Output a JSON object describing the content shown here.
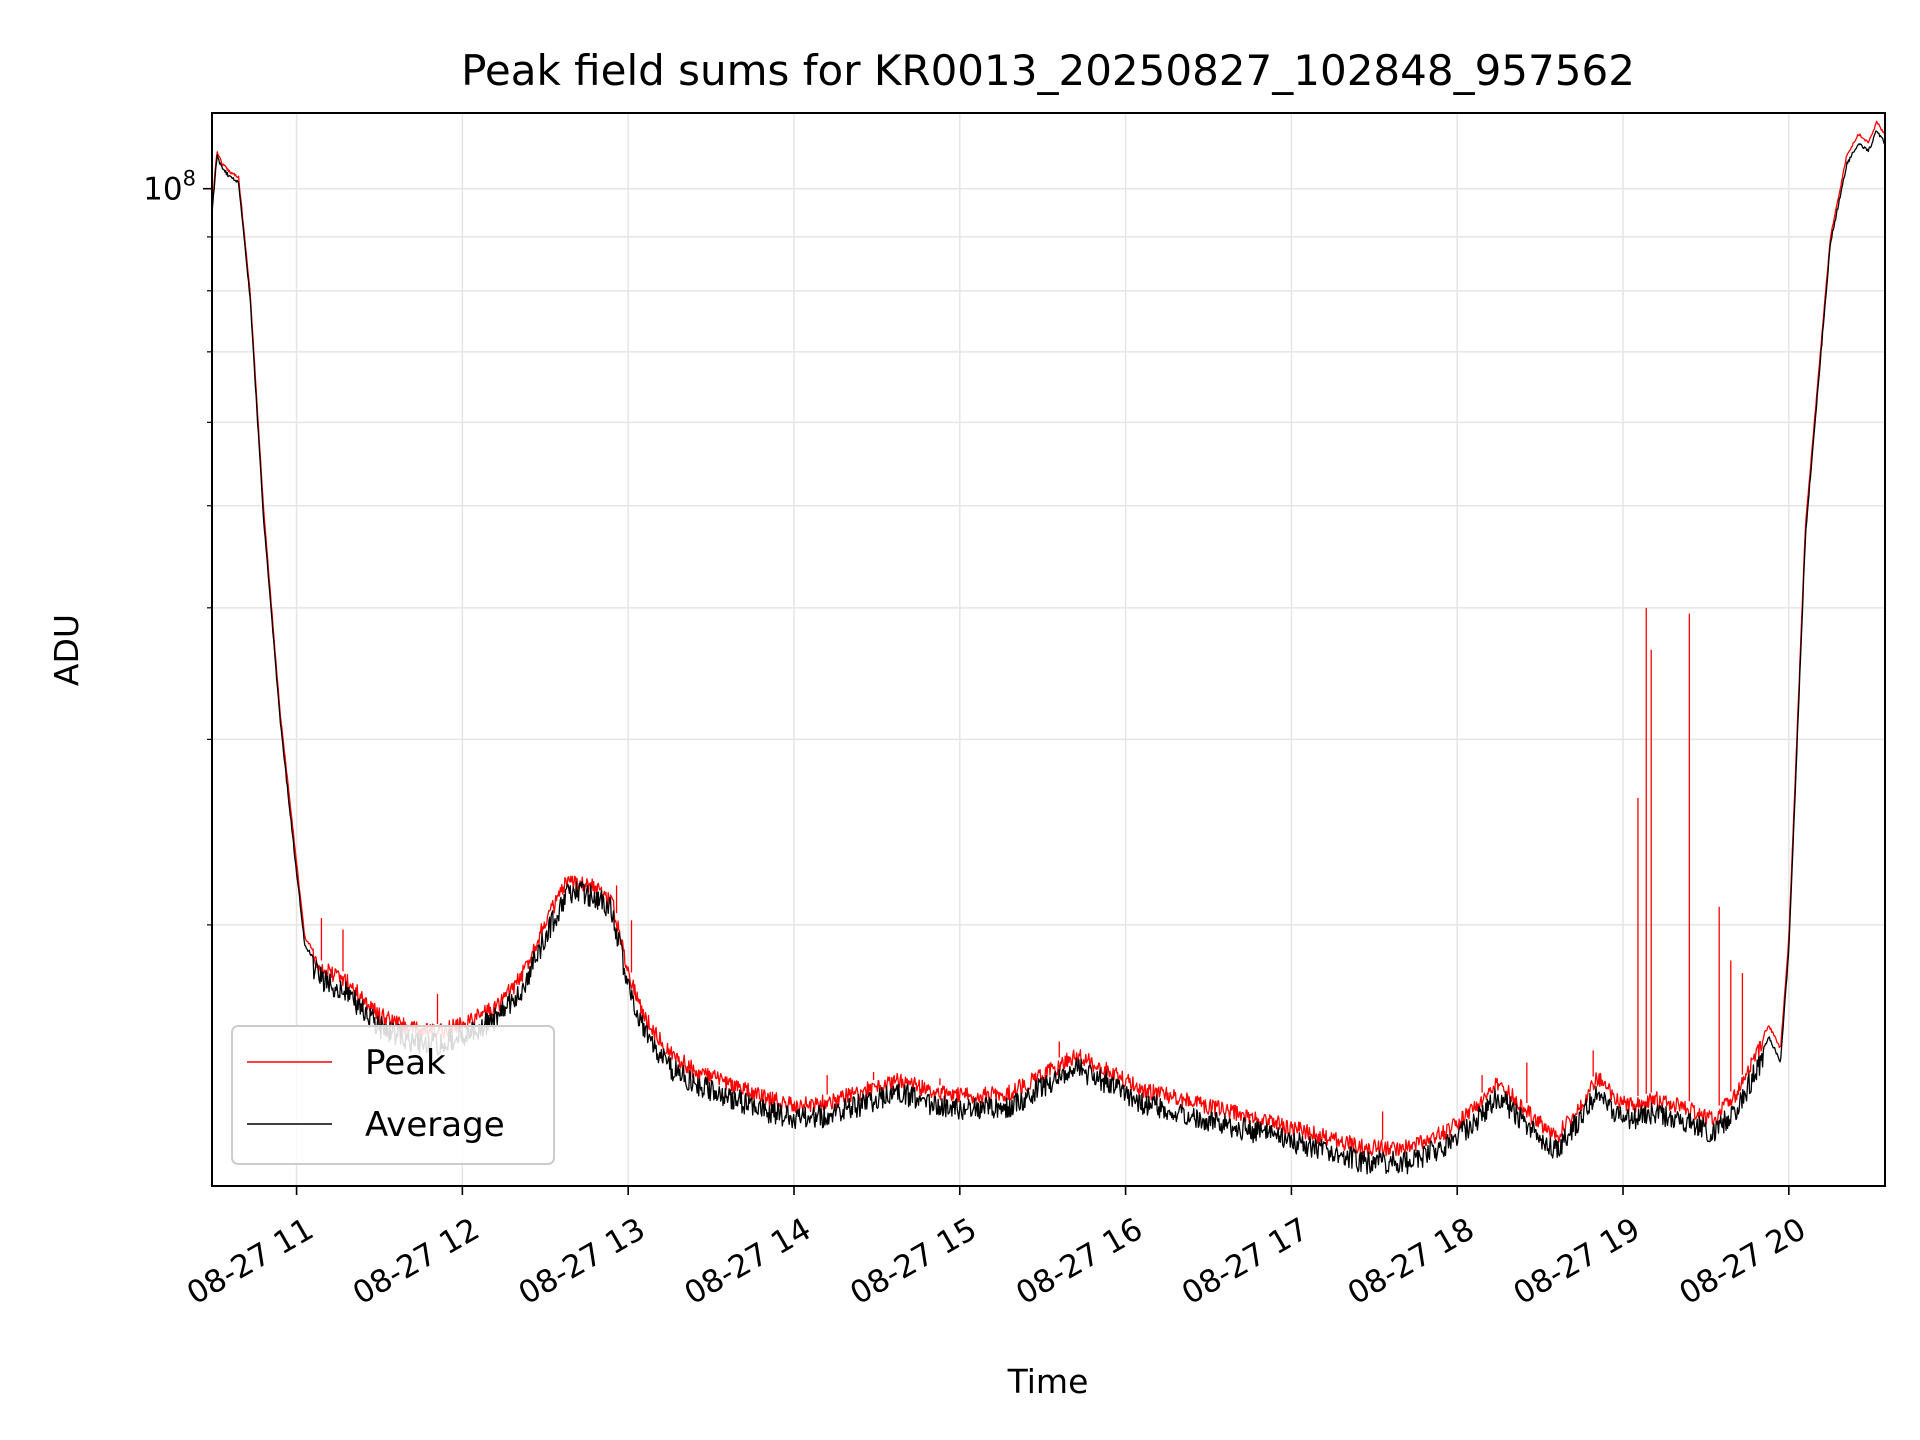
{
  "chart_data": {
    "type": "line",
    "title": "Peak field sums for KR0013_20250827_102848_957562",
    "xlabel": "Time",
    "ylabel": "ADU",
    "yscale": "log",
    "ylim": [
      11300000,
      118000000
    ],
    "xlim_hours": [
      10.49,
      20.58
    ],
    "grid": true,
    "legend_position": "lower-left",
    "x_tick_labels": [
      "08-27 11",
      "08-27 12",
      "08-27 13",
      "08-27 14",
      "08-27 15",
      "08-27 16",
      "08-27 17",
      "08-27 18",
      "08-27 19",
      "08-27 20"
    ],
    "x_tick_hours": [
      11,
      12,
      13,
      14,
      15,
      16,
      17,
      18,
      19,
      20
    ],
    "y_tick_labels": [
      {
        "base": "10",
        "exp": "8",
        "value": 100000000
      }
    ],
    "y_minor_ticks": [
      20000000,
      30000000,
      40000000,
      50000000,
      60000000,
      70000000,
      80000000,
      90000000
    ],
    "colors": {
      "peak": "#ff0000",
      "average": "#000000",
      "grid": "#e5e5e5"
    },
    "series": [
      {
        "name": "Peak",
        "color": "#ff0000",
        "x": [
          10.49,
          10.52,
          10.55,
          10.6,
          10.65,
          10.72,
          10.8,
          10.9,
          11.0,
          11.05,
          11.15,
          11.3,
          11.5,
          11.7,
          11.85,
          12.0,
          12.2,
          12.35,
          12.5,
          12.62,
          12.7,
          12.8,
          12.9,
          13.0,
          13.1,
          13.25,
          13.4,
          13.6,
          13.8,
          14.0,
          14.2,
          14.45,
          14.65,
          14.85,
          15.05,
          15.3,
          15.55,
          15.7,
          15.9,
          16.1,
          16.35,
          16.65,
          16.9,
          17.2,
          17.45,
          17.7,
          17.95,
          18.1,
          18.25,
          18.45,
          18.6,
          18.75,
          18.85,
          18.95,
          19.05,
          19.2,
          19.4,
          19.55,
          19.7,
          19.8,
          19.88,
          19.95,
          20.0,
          20.1,
          20.25,
          20.35,
          20.42,
          20.48,
          20.53,
          20.58
        ],
        "y": [
          96000000,
          109000000,
          106000000,
          104000000,
          103000000,
          80000000,
          50000000,
          32000000,
          23000000,
          19500000,
          18500000,
          18000000,
          16700000,
          16200000,
          16100000,
          16400000,
          17000000,
          18100000,
          20500000,
          22200000,
          22400000,
          22100000,
          21500000,
          18400000,
          16600000,
          15400000,
          14800000,
          14400000,
          14000000,
          13700000,
          13800000,
          14200000,
          14500000,
          14100000,
          14000000,
          14100000,
          14800000,
          15300000,
          14800000,
          14200000,
          13900000,
          13500000,
          13200000,
          12800000,
          12500000,
          12500000,
          13000000,
          13600000,
          14400000,
          13400000,
          12800000,
          13800000,
          14600000,
          13900000,
          13700000,
          13900000,
          13600000,
          13300000,
          14200000,
          15300000,
          16100000,
          15300000,
          19500000,
          48000000,
          90000000,
          108000000,
          113000000,
          111000000,
          116000000,
          113000000
        ]
      },
      {
        "name": "Average",
        "color": "#000000",
        "x": [
          10.49,
          10.52,
          10.55,
          10.6,
          10.65,
          10.72,
          10.8,
          10.9,
          11.0,
          11.05,
          11.15,
          11.3,
          11.5,
          11.7,
          11.85,
          12.0,
          12.2,
          12.35,
          12.5,
          12.62,
          12.7,
          12.8,
          12.9,
          13.0,
          13.1,
          13.25,
          13.4,
          13.6,
          13.8,
          14.0,
          14.2,
          14.45,
          14.65,
          14.85,
          15.05,
          15.3,
          15.55,
          15.7,
          15.9,
          16.1,
          16.35,
          16.65,
          16.9,
          17.2,
          17.45,
          17.7,
          17.95,
          18.1,
          18.25,
          18.45,
          18.6,
          18.75,
          18.85,
          18.95,
          19.05,
          19.2,
          19.4,
          19.55,
          19.7,
          19.8,
          19.88,
          19.95,
          20.0,
          20.1,
          20.25,
          20.35,
          20.42,
          20.48,
          20.53,
          20.58
        ],
        "y": [
          95000000,
          108000000,
          105000000,
          103000000,
          102000000,
          79000000,
          49000000,
          31500000,
          22500000,
          19200000,
          18200000,
          17700000,
          16400000,
          15900000,
          15800000,
          16100000,
          16700000,
          17700000,
          20000000,
          21800000,
          22100000,
          21800000,
          21200000,
          18000000,
          16200000,
          15000000,
          14500000,
          14100000,
          13700000,
          13400000,
          13500000,
          13900000,
          14200000,
          13800000,
          13700000,
          13800000,
          14500000,
          15000000,
          14500000,
          13900000,
          13600000,
          13200000,
          12900000,
          12500000,
          12200000,
          12200000,
          12700000,
          13300000,
          14100000,
          13100000,
          12500000,
          13500000,
          14300000,
          13600000,
          13400000,
          13600000,
          13300000,
          13000000,
          13800000,
          14900000,
          15700000,
          14900000,
          19000000,
          47000000,
          89000000,
          106000000,
          111000000,
          109000000,
          114000000,
          111000000
        ]
      }
    ],
    "peak_spikes": [
      {
        "x": 11.15,
        "y": 20300000
      },
      {
        "x": 11.28,
        "y": 19800000
      },
      {
        "x": 11.85,
        "y": 17200000
      },
      {
        "x": 12.93,
        "y": 21800000
      },
      {
        "x": 13.02,
        "y": 20200000
      },
      {
        "x": 14.2,
        "y": 14400000
      },
      {
        "x": 14.48,
        "y": 14500000
      },
      {
        "x": 14.88,
        "y": 14300000
      },
      {
        "x": 15.6,
        "y": 15500000
      },
      {
        "x": 17.55,
        "y": 13300000
      },
      {
        "x": 18.15,
        "y": 14400000
      },
      {
        "x": 18.42,
        "y": 14800000
      },
      {
        "x": 18.82,
        "y": 15200000
      },
      {
        "x": 19.09,
        "y": 26400000
      },
      {
        "x": 19.14,
        "y": 40000000
      },
      {
        "x": 19.17,
        "y": 36500000
      },
      {
        "x": 19.4,
        "y": 39500000
      },
      {
        "x": 19.58,
        "y": 20800000
      },
      {
        "x": 19.65,
        "y": 18500000
      },
      {
        "x": 19.72,
        "y": 18000000
      }
    ]
  },
  "legend": {
    "items": [
      {
        "label": "Peak",
        "color": "#ff0000"
      },
      {
        "label": "Average",
        "color": "#000000"
      }
    ]
  }
}
